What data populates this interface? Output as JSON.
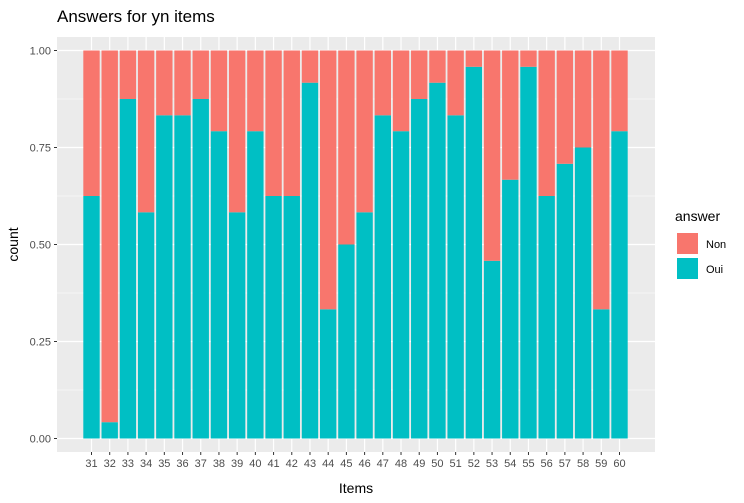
{
  "chart_data": {
    "type": "bar",
    "stacked": true,
    "title": "Answers for yn items",
    "xlabel": "Items",
    "ylabel": "count",
    "ylim": [
      0,
      1
    ],
    "yticks": [
      "0.00",
      "0.25",
      "0.50",
      "0.75",
      "1.00"
    ],
    "grid": true,
    "legend_position": "right",
    "legend_title": "answer",
    "categories": [
      "31",
      "32",
      "33",
      "34",
      "35",
      "36",
      "37",
      "38",
      "39",
      "40",
      "41",
      "42",
      "43",
      "44",
      "45",
      "46",
      "47",
      "48",
      "49",
      "50",
      "51",
      "52",
      "53",
      "54",
      "55",
      "56",
      "57",
      "58",
      "59",
      "60"
    ],
    "series": [
      {
        "name": "Non",
        "color": "#F8766D",
        "values": [
          0.375,
          0.958,
          0.125,
          0.417,
          0.167,
          0.167,
          0.125,
          0.208,
          0.417,
          0.208,
          0.375,
          0.375,
          0.083,
          0.667,
          0.5,
          0.417,
          0.167,
          0.208,
          0.125,
          0.083,
          0.167,
          0.042,
          0.542,
          0.333,
          0.042,
          0.375,
          0.292,
          0.25,
          0.667,
          0.208
        ]
      },
      {
        "name": "Oui",
        "color": "#00BFC4",
        "values": [
          0.625,
          0.042,
          0.875,
          0.583,
          0.833,
          0.833,
          0.875,
          0.792,
          0.583,
          0.792,
          0.625,
          0.625,
          0.917,
          0.333,
          0.5,
          0.583,
          0.833,
          0.792,
          0.875,
          0.917,
          0.833,
          0.958,
          0.458,
          0.667,
          0.958,
          0.625,
          0.708,
          0.75,
          0.333,
          0.792
        ]
      }
    ]
  }
}
